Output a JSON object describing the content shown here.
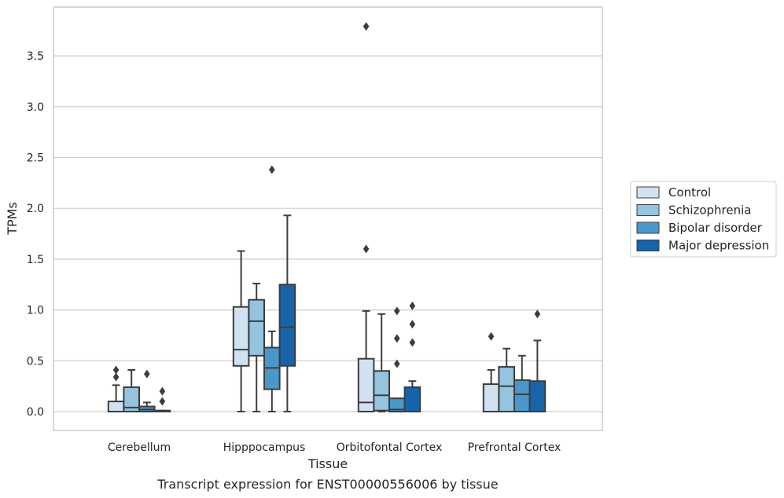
{
  "chart_data": {
    "type": "box",
    "xlabel": "Tissue",
    "ylabel": "TPMs",
    "caption": "Transcript expression for ENST00000556006 by tissue",
    "ylim": [
      -0.18,
      3.98
    ],
    "yticks": [
      "0.0",
      "0.5",
      "1.0",
      "1.5",
      "2.0",
      "2.5",
      "3.0",
      "3.5"
    ],
    "grid": true,
    "legend_position": "right",
    "categories": [
      "Cerebellum",
      "Hipppocampus",
      "Orbitofontal Cortex",
      "Prefrontal Cortex"
    ],
    "series": [
      {
        "name": "Control",
        "color": "#d0e1f2",
        "boxes": [
          {
            "whislo": 0.0,
            "q1": 0.0,
            "med": 0.0,
            "q3": 0.1,
            "whishi": 0.26,
            "fliers": [
              0.34,
              0.41
            ]
          },
          {
            "whislo": 0.0,
            "q1": 0.45,
            "med": 0.61,
            "q3": 1.03,
            "whishi": 1.58,
            "fliers": []
          },
          {
            "whislo": 0.0,
            "q1": 0.0,
            "med": 0.09,
            "q3": 0.52,
            "whishi": 0.99,
            "fliers": [
              1.6,
              3.79
            ]
          },
          {
            "whislo": 0.0,
            "q1": 0.0,
            "med": 0.0,
            "q3": 0.27,
            "whishi": 0.41,
            "fliers": [
              0.74
            ]
          }
        ]
      },
      {
        "name": "Schizophrenia",
        "color": "#94c4df",
        "boxes": [
          {
            "whislo": 0.0,
            "q1": 0.0,
            "med": 0.04,
            "q3": 0.24,
            "whishi": 0.41,
            "fliers": []
          },
          {
            "whislo": 0.0,
            "q1": 0.55,
            "med": 0.89,
            "q3": 1.1,
            "whishi": 1.26,
            "fliers": []
          },
          {
            "whislo": 0.0,
            "q1": 0.01,
            "med": 0.16,
            "q3": 0.4,
            "whishi": 0.96,
            "fliers": []
          },
          {
            "whislo": 0.0,
            "q1": 0.0,
            "med": 0.25,
            "q3": 0.44,
            "whishi": 0.62,
            "fliers": []
          }
        ]
      },
      {
        "name": "Bipolar disorder",
        "color": "#4a98c9",
        "boxes": [
          {
            "whislo": 0.0,
            "q1": 0.0,
            "med": 0.02,
            "q3": 0.05,
            "whishi": 0.09,
            "fliers": [
              0.37
            ]
          },
          {
            "whislo": 0.0,
            "q1": 0.22,
            "med": 0.43,
            "q3": 0.63,
            "whishi": 0.79,
            "fliers": [
              2.38
            ]
          },
          {
            "whislo": 0.0,
            "q1": 0.0,
            "med": 0.02,
            "q3": 0.13,
            "whishi": 0.13,
            "fliers": [
              0.47,
              0.72,
              0.99
            ]
          },
          {
            "whislo": 0.0,
            "q1": 0.0,
            "med": 0.17,
            "q3": 0.31,
            "whishi": 0.55,
            "fliers": []
          }
        ]
      },
      {
        "name": "Major depression",
        "color": "#1764ab",
        "boxes": [
          {
            "whislo": 0.0,
            "q1": 0.0,
            "med": 0.0,
            "q3": 0.01,
            "whishi": 0.01,
            "fliers": [
              0.1,
              0.2
            ]
          },
          {
            "whislo": 0.0,
            "q1": 0.45,
            "med": 0.83,
            "q3": 1.25,
            "whishi": 1.93,
            "fliers": []
          },
          {
            "whislo": 0.0,
            "q1": 0.0,
            "med": 0.0,
            "q3": 0.24,
            "whishi": 0.3,
            "fliers": [
              0.68,
              0.86,
              1.04
            ]
          },
          {
            "whislo": 0.0,
            "q1": 0.0,
            "med": 0.0,
            "q3": 0.3,
            "whishi": 0.7,
            "fliers": [
              0.96
            ]
          }
        ]
      }
    ]
  }
}
